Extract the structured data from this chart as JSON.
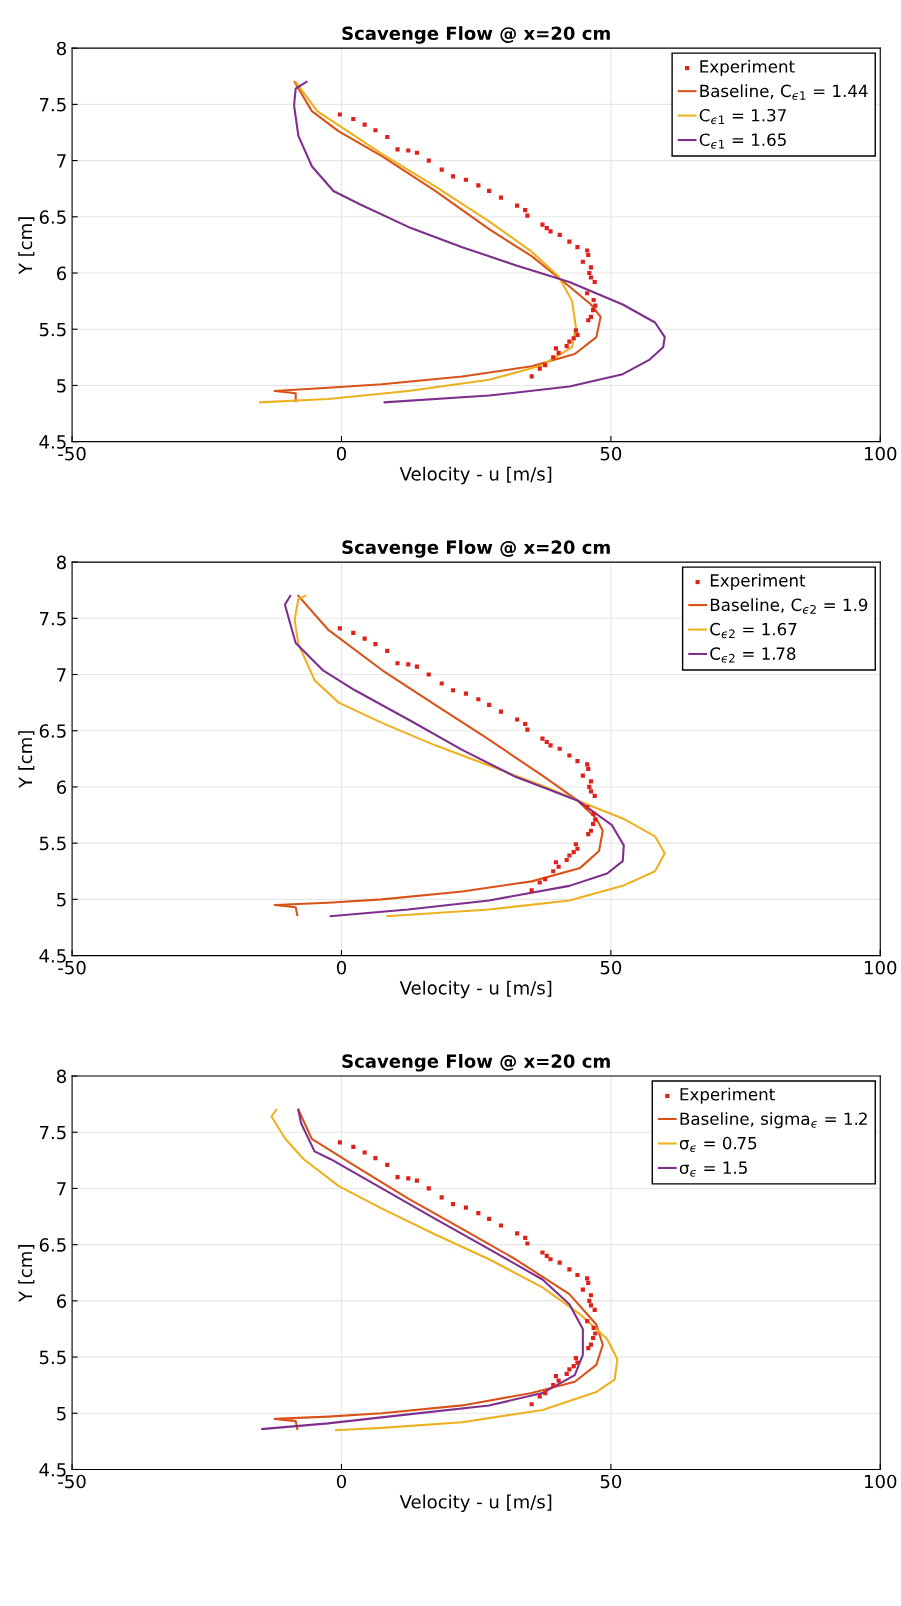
{
  "chart_data": [
    {
      "type": "line",
      "title": "Scavenge Flow @ x=20 cm",
      "xlabel": "Velocity - u [m/s]",
      "ylabel": "Y [cm]",
      "xlim": [
        -50,
        100
      ],
      "xticks": [
        -50,
        0,
        50,
        100
      ],
      "ylim": [
        4.5,
        8
      ],
      "yticks": [
        4.5,
        5,
        5.5,
        6,
        6.5,
        7,
        7.5,
        8
      ],
      "grid": true,
      "legend": "top right",
      "series": [
        {
          "name": "Experiment",
          "type": "scatter",
          "marker": "square",
          "color": "#e0201b",
          "x": [
            -0.3,
            2.2,
            4.3,
            6.3,
            8.5,
            10.4,
            12.4,
            14,
            16.2,
            18.6,
            20.7,
            23.1,
            25.4,
            27.4,
            29.6,
            32.6,
            34.1,
            34.5,
            37.3,
            38.1,
            38.8,
            40.5,
            42.3,
            43.8,
            45.6,
            45.8,
            44.8,
            46.3,
            46,
            46.3,
            47,
            45.6,
            46.8,
            47.1,
            46.7,
            46.3,
            45.8,
            43.5,
            43.8,
            43.1,
            42.3,
            41.8,
            39.8,
            40.3,
            39.3,
            37.8,
            36.8,
            35.3
          ],
          "values": [
            7.41,
            7.37,
            7.32,
            7.27,
            7.21,
            7.1,
            7.09,
            7.07,
            7.0,
            6.92,
            6.86,
            6.83,
            6.78,
            6.73,
            6.67,
            6.6,
            6.56,
            6.51,
            6.43,
            6.4,
            6.37,
            6.34,
            6.28,
            6.23,
            6.2,
            6.16,
            6.1,
            6.05,
            6.0,
            5.96,
            5.92,
            5.82,
            5.76,
            5.71,
            5.67,
            5.61,
            5.58,
            5.49,
            5.45,
            5.42,
            5.39,
            5.35,
            5.33,
            5.29,
            5.25,
            5.18,
            5.15,
            5.08
          ]
        },
        {
          "name": "Baseline, C$_{ϵ1}$ = 1.44",
          "color": "#d95319",
          "x": [
            -8.7,
            -5.5,
            -0.5,
            7.5,
            17.4,
            27.4,
            35.3,
            42.3,
            46.3,
            48.1,
            47.3,
            43.3,
            35.3,
            22.4,
            7.5,
            -2.5,
            -12.4,
            -8.5,
            -8.5
          ],
          "values": [
            7.7,
            7.44,
            7.26,
            7.04,
            6.73,
            6.39,
            6.15,
            5.88,
            5.72,
            5.61,
            5.43,
            5.28,
            5.17,
            5.08,
            5.01,
            4.98,
            4.95,
            4.93,
            4.86
          ]
        },
        {
          "name": "C$_{ϵ1}$ = 1.37",
          "color": "#edb120",
          "x": [
            -8.5,
            -4.5,
            7.5,
            17.4,
            27.4,
            35.3,
            40.3,
            42.8,
            43.5,
            42.8,
            37.3,
            27.4,
            12.4,
            -2.5,
            -15.1
          ],
          "values": [
            7.7,
            7.44,
            7.06,
            6.77,
            6.46,
            6.19,
            5.97,
            5.75,
            5.52,
            5.34,
            5.18,
            5.05,
            4.95,
            4.88,
            4.85
          ]
        },
        {
          "name": "C$_{ϵ1}$ = 1.65",
          "color": "#7e2f8e",
          "x": [
            -6.5,
            -8.5,
            -8.8,
            -8,
            -5.5,
            -1.5,
            3.5,
            12.4,
            22.4,
            32.3,
            42.3,
            52.2,
            58.2,
            60,
            59.7,
            57.2,
            52.2,
            42.3,
            27.4,
            8
          ],
          "values": [
            7.7,
            7.64,
            7.49,
            7.22,
            6.95,
            6.73,
            6.61,
            6.41,
            6.23,
            6.07,
            5.92,
            5.72,
            5.56,
            5.43,
            5.34,
            5.23,
            5.1,
            4.99,
            4.91,
            4.85
          ]
        }
      ]
    },
    {
      "type": "line",
      "title": "Scavenge Flow @ x=20 cm",
      "xlabel": "Velocity - u [m/s]",
      "ylabel": "Y [cm]",
      "xlim": [
        -50,
        100
      ],
      "xticks": [
        -50,
        0,
        50,
        100
      ],
      "ylim": [
        4.5,
        8
      ],
      "yticks": [
        4.5,
        5,
        5.5,
        6,
        6.5,
        7,
        7.5,
        8
      ],
      "grid": true,
      "legend": "top right",
      "series": [
        {
          "name": "Experiment",
          "type": "scatter",
          "marker": "square",
          "color": "#e0201b",
          "x": [
            -0.3,
            2.2,
            4.3,
            6.3,
            8.5,
            10.4,
            12.4,
            14,
            16.2,
            18.6,
            20.7,
            23.1,
            25.4,
            27.4,
            29.6,
            32.6,
            34.1,
            34.5,
            37.3,
            38.1,
            38.8,
            40.5,
            42.3,
            43.8,
            45.6,
            45.8,
            44.8,
            46.3,
            46,
            46.3,
            47,
            45.6,
            46.8,
            47.1,
            46.7,
            46.3,
            45.8,
            43.5,
            43.8,
            43.1,
            42.3,
            41.8,
            39.8,
            40.3,
            39.3,
            37.8,
            36.8,
            35.3
          ],
          "values": [
            7.41,
            7.37,
            7.32,
            7.27,
            7.21,
            7.1,
            7.09,
            7.07,
            7.0,
            6.92,
            6.86,
            6.83,
            6.78,
            6.73,
            6.67,
            6.6,
            6.56,
            6.51,
            6.43,
            6.4,
            6.37,
            6.34,
            6.28,
            6.23,
            6.2,
            6.16,
            6.1,
            6.05,
            6.0,
            5.96,
            5.92,
            5.82,
            5.76,
            5.71,
            5.67,
            5.61,
            5.58,
            5.49,
            5.45,
            5.42,
            5.39,
            5.35,
            5.33,
            5.29,
            5.25,
            5.18,
            5.15,
            5.08
          ]
        },
        {
          "name": "Baseline, C$_{ϵ2}$ = 1.9",
          "color": "#d95319",
          "x": [
            -8,
            -2.5,
            7.5,
            17.4,
            27.4,
            37.3,
            43.8,
            47.3,
            48.5,
            47.8,
            44.3,
            35.3,
            22.4,
            7.5,
            -2.5,
            -12.4,
            -8.5,
            -8.2
          ],
          "values": [
            7.7,
            7.4,
            7.04,
            6.73,
            6.42,
            6.1,
            5.88,
            5.72,
            5.61,
            5.43,
            5.28,
            5.16,
            5.07,
            5.0,
            4.97,
            4.95,
            4.93,
            4.86
          ]
        },
        {
          "name": "C$_{ϵ2}$ = 1.67",
          "color": "#edb120",
          "x": [
            -6.7,
            -8,
            -8.7,
            -8,
            -5,
            -0.5,
            7.5,
            17.4,
            27.4,
            37.3,
            43.8,
            52.2,
            58.2,
            60,
            58.2,
            52.2,
            42.3,
            27.4,
            8.5
          ],
          "values": [
            7.7,
            7.67,
            7.49,
            7.27,
            6.95,
            6.75,
            6.57,
            6.37,
            6.19,
            6.01,
            5.88,
            5.72,
            5.56,
            5.41,
            5.25,
            5.12,
            4.99,
            4.91,
            4.85
          ]
        },
        {
          "name": "C$_{ϵ2}$ = 1.78",
          "color": "#7e2f8e",
          "x": [
            -9.5,
            -10.5,
            -8.5,
            -3.5,
            2.5,
            12.4,
            22.4,
            32.3,
            43.8,
            50.2,
            52.4,
            52.2,
            49.3,
            42.3,
            27.4,
            12.4,
            -2
          ],
          "values": [
            7.7,
            7.62,
            7.28,
            7.04,
            6.86,
            6.6,
            6.33,
            6.09,
            5.88,
            5.66,
            5.48,
            5.34,
            5.23,
            5.12,
            4.99,
            4.91,
            4.85
          ]
        }
      ]
    },
    {
      "type": "line",
      "title": "Scavenge Flow @ x=20 cm",
      "xlabel": "Velocity - u [m/s]",
      "ylabel": "Y [cm]",
      "xlim": [
        -50,
        100
      ],
      "xticks": [
        -50,
        0,
        50,
        100
      ],
      "ylim": [
        4.5,
        8
      ],
      "yticks": [
        4.5,
        5,
        5.5,
        6,
        6.5,
        7,
        7.5,
        8
      ],
      "grid": true,
      "legend": "top right",
      "series": [
        {
          "name": "Experiment",
          "type": "scatter",
          "marker": "square",
          "color": "#e0201b",
          "x": [
            -0.3,
            2.2,
            4.3,
            6.3,
            8.5,
            10.4,
            12.4,
            14,
            16.2,
            18.6,
            20.7,
            23.1,
            25.4,
            27.4,
            29.6,
            32.6,
            34.1,
            34.5,
            37.3,
            38.1,
            38.8,
            40.5,
            42.3,
            43.8,
            45.6,
            45.8,
            44.8,
            46.3,
            46,
            46.3,
            47,
            45.6,
            46.8,
            47.1,
            46.7,
            46.3,
            45.8,
            43.5,
            43.8,
            43.1,
            42.3,
            41.8,
            39.8,
            40.3,
            39.3,
            37.8,
            36.8,
            35.3
          ],
          "values": [
            7.41,
            7.37,
            7.32,
            7.27,
            7.21,
            7.1,
            7.09,
            7.07,
            7.0,
            6.92,
            6.86,
            6.83,
            6.78,
            6.73,
            6.67,
            6.6,
            6.56,
            6.51,
            6.43,
            6.4,
            6.37,
            6.34,
            6.28,
            6.23,
            6.2,
            6.16,
            6.1,
            6.05,
            6.0,
            5.96,
            5.92,
            5.82,
            5.76,
            5.71,
            5.67,
            5.61,
            5.58,
            5.49,
            5.45,
            5.42,
            5.39,
            5.35,
            5.33,
            5.29,
            5.25,
            5.18,
            5.15,
            5.08
          ]
        },
        {
          "name": "Baseline, sigma$_{ϵ}$ = 1.2",
          "color": "#d95319",
          "x": [
            -8,
            -5.5,
            2.5,
            12.4,
            22.4,
            32.3,
            42.3,
            47.3,
            48.5,
            47.3,
            43.3,
            35.3,
            22.4,
            7.5,
            -2.5,
            -12.4,
            -8.5,
            -8.2
          ],
          "values": [
            7.7,
            7.44,
            7.2,
            6.91,
            6.64,
            6.37,
            6.06,
            5.79,
            5.61,
            5.43,
            5.28,
            5.18,
            5.07,
            5.0,
            4.97,
            4.95,
            4.93,
            4.86
          ]
        },
        {
          "name": "σ$_{ϵ}$ = 0.75",
          "color": "#edb120",
          "x": [
            -12.1,
            -13,
            -10.4,
            -7,
            -0.5,
            7.5,
            17.4,
            27.4,
            37.3,
            44.3,
            49.3,
            51.2,
            50.7,
            47.3,
            37.3,
            22.4,
            7.5,
            -1
          ],
          "values": [
            7.7,
            7.64,
            7.44,
            7.26,
            7.02,
            6.82,
            6.59,
            6.37,
            6.12,
            5.88,
            5.66,
            5.48,
            5.3,
            5.19,
            5.03,
            4.92,
            4.87,
            4.85
          ]
        },
        {
          "name": "σ$_{ϵ}$ = 1.5",
          "color": "#7e2f8e",
          "x": [
            -8,
            -7.5,
            -5,
            -2,
            7.5,
            17.4,
            27.4,
            37.3,
            42.3,
            44.8,
            44.8,
            43.3,
            37.3,
            27.4,
            12.4,
            -2.5,
            -14.7
          ],
          "values": [
            7.7,
            7.58,
            7.33,
            7.26,
            7.0,
            6.73,
            6.46,
            6.19,
            5.97,
            5.75,
            5.52,
            5.34,
            5.18,
            5.07,
            4.99,
            4.91,
            4.86
          ]
        }
      ]
    }
  ]
}
